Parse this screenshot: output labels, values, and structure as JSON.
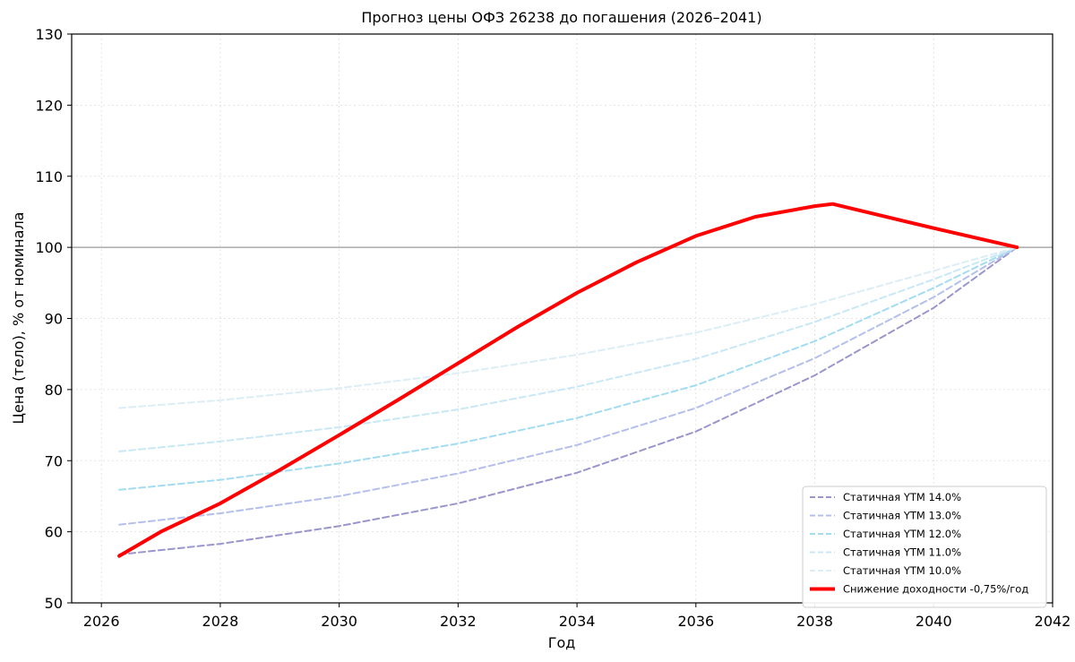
{
  "chart_data": {
    "type": "line",
    "title": "Прогноз цены ОФЗ 26238 до погашения (2026–2041)",
    "xlabel": "Год",
    "ylabel": "Цена (тело), % от номинала",
    "xlim": [
      2025.5,
      2042
    ],
    "ylim": [
      50,
      130
    ],
    "xticks": [
      "2026",
      "2028",
      "2030",
      "2032",
      "2034",
      "2036",
      "2038",
      "2040",
      "2042"
    ],
    "yticks": [
      "50",
      "60",
      "70",
      "80",
      "90",
      "100",
      "110",
      "120",
      "130"
    ],
    "grid": true,
    "reference_line": 100,
    "legend_position": "lower-right",
    "series": [
      {
        "name": "Статичная YTM 14.0%",
        "color": "#9a96cc",
        "style": "dashed",
        "x": [
          2026.3,
          2028,
          2030,
          2032,
          2034,
          2036,
          2038,
          2040,
          2041.4
        ],
        "y": [
          56.8,
          58.3,
          60.8,
          64.0,
          68.3,
          74.1,
          82.0,
          91.5,
          100
        ]
      },
      {
        "name": "Статичная YTM 13.0%",
        "color": "#b4bfec",
        "style": "dashed",
        "x": [
          2026.3,
          2028,
          2030,
          2032,
          2034,
          2036,
          2038,
          2040,
          2041.4
        ],
        "y": [
          61.0,
          62.6,
          65.0,
          68.2,
          72.2,
          77.4,
          84.4,
          93.0,
          100
        ]
      },
      {
        "name": "Статичная YTM 12.0%",
        "color": "#a3dcf2",
        "style": "dashed",
        "x": [
          2026.3,
          2028,
          2030,
          2032,
          2034,
          2036,
          2038,
          2040,
          2041.4
        ],
        "y": [
          65.9,
          67.3,
          69.6,
          72.4,
          76.0,
          80.6,
          86.8,
          94.3,
          100
        ]
      },
      {
        "name": "Статичная YTM 11.0%",
        "color": "#c8e8f6",
        "style": "dashed",
        "x": [
          2026.3,
          2028,
          2030,
          2032,
          2034,
          2036,
          2038,
          2040,
          2041.4
        ],
        "y": [
          71.3,
          72.7,
          74.7,
          77.2,
          80.4,
          84.3,
          89.5,
          95.5,
          100
        ]
      },
      {
        "name": "Статичная YTM 10.0%",
        "color": "#dcedf5",
        "style": "dashed",
        "x": [
          2026.3,
          2028,
          2030,
          2032,
          2034,
          2036,
          2038,
          2040,
          2041.4
        ],
        "y": [
          77.4,
          78.5,
          80.2,
          82.3,
          84.9,
          88.0,
          92.0,
          96.7,
          100
        ]
      },
      {
        "name": "Снижение доходности -0,75%/год",
        "color": "#ff0000",
        "style": "solid",
        "x": [
          2026.3,
          2027,
          2028,
          2029,
          2030,
          2031,
          2032,
          2033,
          2034,
          2035,
          2036,
          2037,
          2038,
          2038.3,
          2039,
          2040,
          2041.4
        ],
        "y": [
          56.6,
          60.0,
          64.0,
          68.7,
          73.6,
          78.6,
          83.7,
          88.8,
          93.6,
          97.9,
          101.6,
          104.3,
          105.8,
          106.1,
          104.7,
          102.7,
          100
        ]
      }
    ]
  }
}
